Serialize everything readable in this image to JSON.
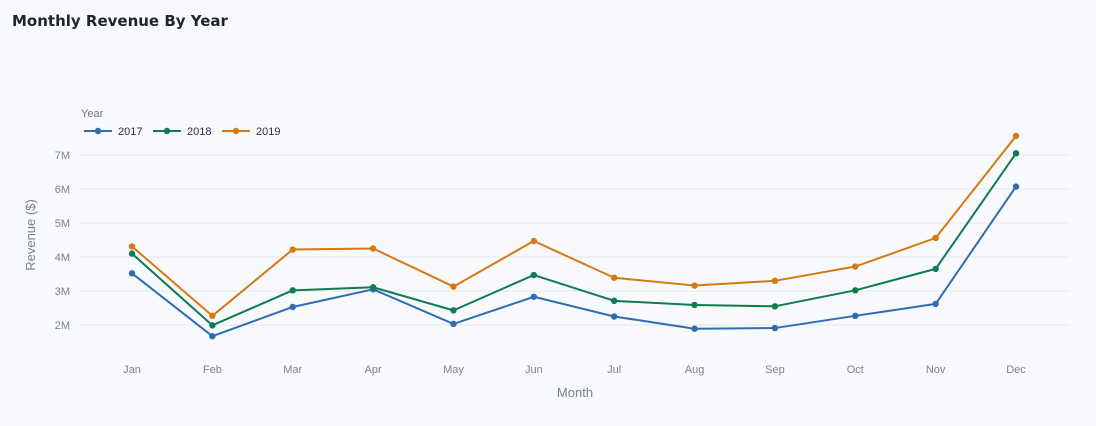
{
  "title": "Monthly Revenue By Year",
  "colors": {
    "background": "#f7f9fc",
    "grid": "#e3e7ee"
  },
  "legend": {
    "title": "Year",
    "placement": "top-left"
  },
  "chart_data": {
    "type": "line",
    "title": "Monthly Revenue By Year",
    "xlabel": "Month",
    "ylabel": "Revenue ($)",
    "categories": [
      "Jan",
      "Feb",
      "Mar",
      "Apr",
      "May",
      "Jun",
      "Jul",
      "Aug",
      "Sep",
      "Oct",
      "Nov",
      "Dec"
    ],
    "ylim": [
      1000000,
      8000000
    ],
    "yticks": [
      2000000,
      3000000,
      4000000,
      5000000,
      6000000,
      7000000
    ],
    "ytick_labels": [
      "2M",
      "3M",
      "4M",
      "5M",
      "6M",
      "7M"
    ],
    "grid": true,
    "legend": true,
    "series": [
      {
        "name": "2017",
        "color": "#2f6db3",
        "values": [
          3520000,
          1670000,
          2530000,
          3050000,
          2030000,
          2830000,
          2250000,
          1890000,
          1910000,
          2270000,
          2620000,
          6070000
        ]
      },
      {
        "name": "2018",
        "color": "#0f7b50",
        "values": [
          4100000,
          1990000,
          3020000,
          3110000,
          2430000,
          3470000,
          2710000,
          2590000,
          2550000,
          3020000,
          3650000,
          7050000
        ]
      },
      {
        "name": "2019",
        "color": "#d57a12",
        "values": [
          4310000,
          2270000,
          4220000,
          4250000,
          3130000,
          4470000,
          3390000,
          3160000,
          3300000,
          3720000,
          4560000,
          7560000
        ]
      }
    ]
  }
}
